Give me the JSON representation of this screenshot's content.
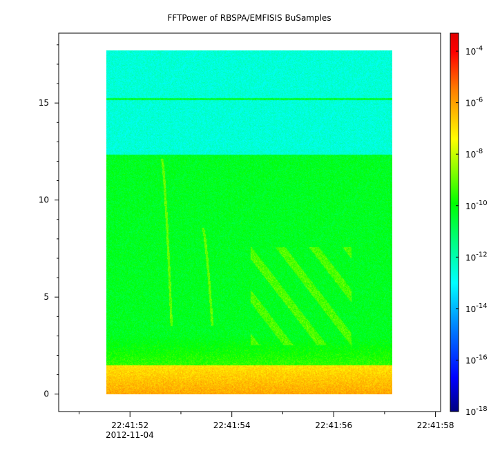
{
  "chart_data": {
    "type": "heatmap",
    "title": "FFTPower of RBSPA/EMFISIS  BuSamples",
    "xlabel": "",
    "ylabel": "",
    "x_ticks": [
      "22:41:52",
      "22:41:54",
      "22:41:56",
      "22:41:58"
    ],
    "x_tick_seconds": [
      52,
      54,
      56,
      58
    ],
    "x_minor_tick_seconds": [
      51,
      53,
      55,
      57
    ],
    "x_date_label": "2012-11-04",
    "xlim_seconds": [
      50.6,
      58.1
    ],
    "y_ticks": [
      0,
      5,
      10,
      15
    ],
    "ylim": [
      -0.9,
      18.6
    ],
    "data_x_range_seconds": [
      51.2,
      57.15
    ],
    "data_y_range": [
      0.0,
      17.5
    ],
    "colorbar": {
      "scale": "log",
      "range_exponent": [
        -18,
        -3.3
      ],
      "tick_exponents": [
        -18,
        -16,
        -14,
        -12,
        -10,
        -8,
        -6,
        -4
      ],
      "base": "10",
      "colormap": [
        "#00007f",
        "#0000ff",
        "#007fff",
        "#00ffff",
        "#00ff7f",
        "#00ff00",
        "#7fff00",
        "#ffff00",
        "#ff7f00",
        "#ff0000",
        "#e00000"
      ]
    },
    "features": {
      "background_upper_band": {
        "y": [
          12.2,
          17.5
        ],
        "level_exponent": -12.5
      },
      "background_main": {
        "y": [
          1.8,
          12.2
        ],
        "level_exponent": -10.3
      },
      "low_frequency_band": {
        "y": [
          0.0,
          1.5
        ],
        "level_exponent": -7.0
      },
      "constant_line": {
        "y": 15.05,
        "level_exponent": -10.5
      },
      "whistler_traces": [
        {
          "x_seconds": [
            52.35,
            52.55
          ],
          "y": [
            12.0,
            3.5
          ],
          "level_exponent": -9.0
        },
        {
          "x_seconds": [
            53.2,
            53.4
          ],
          "y": [
            8.5,
            3.5
          ],
          "level_exponent": -9.0
        }
      ],
      "dispersed_emission": {
        "x_seconds": [
          54.2,
          56.3
        ],
        "y": [
          2.5,
          7.5
        ],
        "level_exponent": -9.0
      }
    },
    "grid": false,
    "legend": "colorbar-right"
  }
}
